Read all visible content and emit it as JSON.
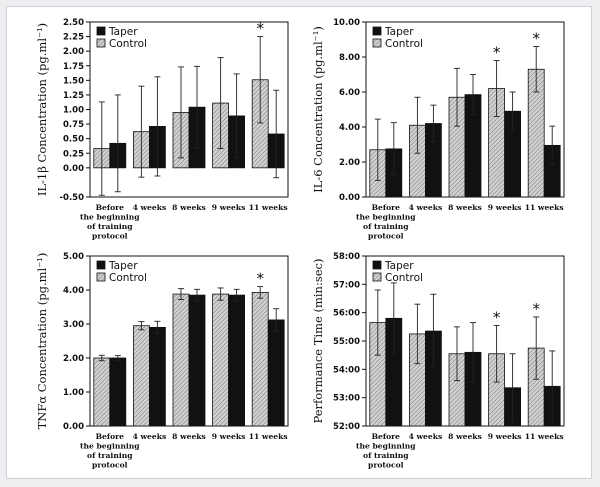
{
  "colors": {
    "taper": "#111111",
    "control_fill": "#cfcfcf",
    "control_hatch": "#7a7a7a",
    "frame": "#cfcfd6"
  },
  "chart_data": [
    {
      "type": "bar",
      "ylabel": "IL-1β Concentration (pg.ml⁻¹)",
      "ylim": [
        -0.5,
        2.5
      ],
      "yticks": [
        "-0.50",
        "0.00",
        "0.25",
        "0.50",
        "0.75",
        "1.00",
        "1.25",
        "1.50",
        "1.75",
        "2.00",
        "2.25",
        "2.50"
      ],
      "categories": [
        [
          "Before",
          "the beginning",
          "of training",
          "protocol"
        ],
        [
          "4 weeks"
        ],
        [
          "8 weeks"
        ],
        [
          "9 weeks"
        ],
        [
          "11 weeks"
        ]
      ],
      "series": [
        {
          "name": "Control",
          "values": [
            0.33,
            0.62,
            0.95,
            1.11,
            1.51
          ],
          "errors": [
            0.8,
            0.78,
            0.78,
            0.78,
            0.74
          ]
        },
        {
          "name": "Taper",
          "values": [
            0.42,
            0.71,
            1.04,
            0.89,
            0.58
          ],
          "errors": [
            0.83,
            0.85,
            0.7,
            0.72,
            0.75
          ]
        }
      ],
      "significant": [
        "",
        "",
        "",
        "",
        "*"
      ],
      "legend": "top-left",
      "grid": false
    },
    {
      "type": "bar",
      "ylabel": "IL-6 Concentration (pg.ml⁻¹)",
      "ylim": [
        0,
        10
      ],
      "yticks": [
        "0.00",
        "2.00",
        "4.00",
        "6.00",
        "8.00",
        "10.00"
      ],
      "categories": [
        [
          "Before",
          "the beginning",
          "of training",
          "protocol"
        ],
        [
          "4 weeks"
        ],
        [
          "8 weeks"
        ],
        [
          "9 weeks"
        ],
        [
          "11 weeks"
        ]
      ],
      "series": [
        {
          "name": "Control",
          "values": [
            2.7,
            4.1,
            5.7,
            6.2,
            7.3
          ],
          "errors": [
            1.75,
            1.6,
            1.65,
            1.6,
            1.3
          ]
        },
        {
          "name": "Taper",
          "values": [
            2.75,
            4.2,
            5.85,
            4.9,
            2.95
          ],
          "errors": [
            1.5,
            1.05,
            1.15,
            1.1,
            1.1
          ]
        }
      ],
      "significant": [
        "",
        "",
        "",
        "*",
        "*"
      ],
      "legend": "top-left",
      "grid": false
    },
    {
      "type": "bar",
      "ylabel": "TNFα Concentration (pg.ml⁻¹)",
      "ylim": [
        0,
        5
      ],
      "yticks": [
        "0.00",
        "1.00",
        "2.00",
        "3.00",
        "4.00",
        "5.00"
      ],
      "categories": [
        [
          "Before",
          "the beginning",
          "of training",
          "protocol"
        ],
        [
          "4 weeks"
        ],
        [
          "8 weeks"
        ],
        [
          "9 weeks"
        ],
        [
          "11 weeks"
        ]
      ],
      "series": [
        {
          "name": "Control",
          "values": [
            2.0,
            2.95,
            3.88,
            3.88,
            3.93
          ],
          "errors": [
            0.08,
            0.12,
            0.16,
            0.18,
            0.17
          ]
        },
        {
          "name": "Taper",
          "values": [
            2.0,
            2.9,
            3.85,
            3.85,
            3.12
          ],
          "errors": [
            0.07,
            0.18,
            0.17,
            0.17,
            0.33
          ]
        }
      ],
      "significant": [
        "",
        "",
        "",
        "",
        "*"
      ],
      "legend": "top-left",
      "grid": false
    },
    {
      "type": "bar",
      "ylabel": "Performance Time (min:sec)",
      "ylim": [
        52,
        58
      ],
      "yticks": [
        "52:00",
        "53:00",
        "54:00",
        "55:00",
        "56:00",
        "57:00",
        "58:00"
      ],
      "categories": [
        [
          "Before",
          "the beginning",
          "of training",
          "protocol"
        ],
        [
          "4 weeks"
        ],
        [
          "8 weeks"
        ],
        [
          "9 weeks"
        ],
        [
          "11 weeks"
        ]
      ],
      "series": [
        {
          "name": "Control",
          "values": [
            55.65,
            55.25,
            54.55,
            54.55,
            54.75
          ],
          "errors": [
            1.15,
            1.05,
            0.95,
            1.0,
            1.1
          ]
        },
        {
          "name": "Taper",
          "values": [
            55.8,
            55.35,
            54.6,
            53.35,
            53.4
          ],
          "errors": [
            1.25,
            1.3,
            1.05,
            1.2,
            1.25
          ]
        }
      ],
      "significant": [
        "",
        "",
        "",
        "*",
        "*"
      ],
      "legend": "top-left",
      "grid": false
    }
  ]
}
